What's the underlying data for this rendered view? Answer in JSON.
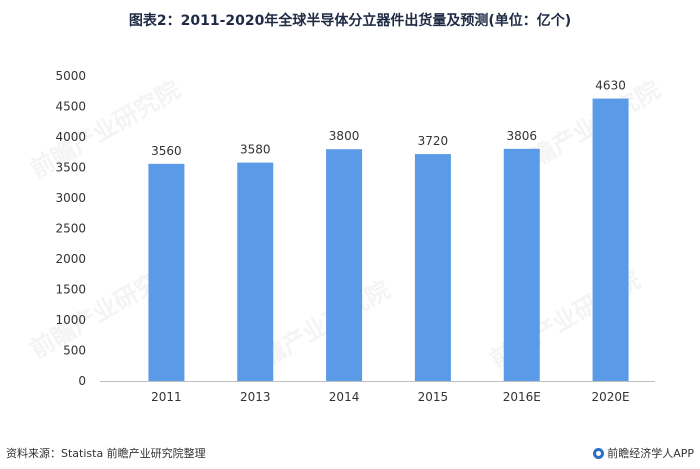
{
  "title": "图表2：2011-2020年全球半导体分立器件出货量及预测(单位：亿个)",
  "source": "资料来源：Statista 前瞻产业研究院整理",
  "brand": "前瞻经济学人APP",
  "watermark": "前瞻产业研究院",
  "colors": {
    "bar": "#5b9ae6",
    "axis": "#bfbfbf",
    "text": "#333333"
  },
  "chart_data": {
    "type": "bar",
    "categories": [
      "2011",
      "2013",
      "2014",
      "2015",
      "2016E",
      "2020E"
    ],
    "values": [
      3560,
      3580,
      3800,
      3720,
      3806,
      4630
    ],
    "title": "图表2：2011-2020年全球半导体分立器件出货量及预测(单位：亿个)",
    "xlabel": "",
    "ylabel": "",
    "ylim": [
      0,
      5000
    ],
    "yticks": [
      0,
      500,
      1000,
      1500,
      2000,
      2500,
      3000,
      3500,
      4000,
      4500,
      5000
    ],
    "grid": false,
    "data_labels": true
  }
}
